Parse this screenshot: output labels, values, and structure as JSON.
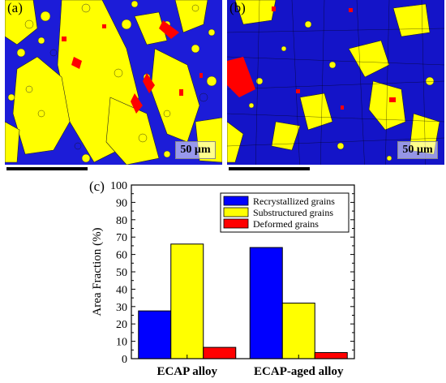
{
  "panels": [
    {
      "label": "(a)",
      "scale": "50 µm"
    },
    {
      "label": "(b)",
      "scale": "50 µm"
    }
  ],
  "chart_panel_label": "(c)",
  "colors": {
    "recrystallized": "#0000ff",
    "substructured": "#ffff00",
    "deformed": "#ff0000",
    "boundary": "#000000"
  },
  "chart_data": {
    "type": "bar",
    "categories": [
      "ECAP alloy",
      "ECAP-aged alloy"
    ],
    "series": [
      {
        "name": "Recrystallized grains",
        "values": [
          27.5,
          64
        ],
        "color": "#0000ff"
      },
      {
        "name": "Substructured grains",
        "values": [
          66,
          32
        ],
        "color": "#ffff00"
      },
      {
        "name": "Deformed grains",
        "values": [
          6.5,
          3.5
        ],
        "color": "#ff0000"
      }
    ],
    "ylabel": "Area Fraction (%)",
    "xlabel": "",
    "ylim": [
      0,
      100
    ],
    "yticks": [
      0,
      10,
      20,
      30,
      40,
      50,
      60,
      70,
      80,
      90,
      100
    ],
    "legend": "top-right",
    "grid": false
  }
}
